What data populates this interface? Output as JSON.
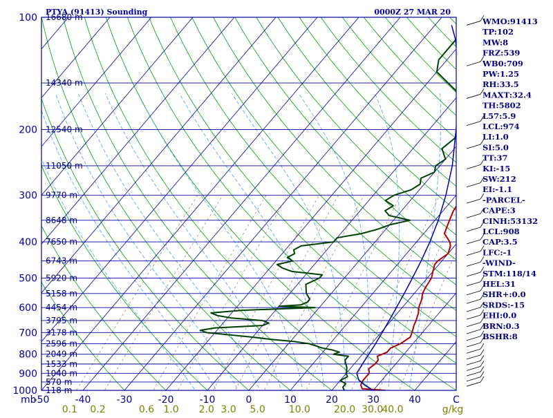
{
  "chart_data": {
    "type": "line",
    "title_left": "PTYA (91413) Sounding",
    "title_right": "0000Z 27 MAR 20",
    "x_axis": {
      "unit_label": "mb",
      "temp_ticks": [
        "-50",
        "-40",
        "-30",
        "-20",
        "-10",
        "0",
        "10",
        "20",
        "30",
        "40",
        "C"
      ],
      "mixing_ratio_ticks": [
        "0.1",
        "0.2",
        "0.6",
        "1.0",
        "2.0",
        "3.0",
        "5.0",
        "10.0",
        "20.0",
        "30.0",
        "40.0",
        "g/kg"
      ],
      "temp_range": [
        -50,
        50
      ]
    },
    "y_axis": {
      "pressure_ticks": [
        "100",
        "200",
        "300",
        "400",
        "500",
        "600",
        "700",
        "800",
        "900",
        "1000"
      ],
      "pressure_range": [
        100,
        1000
      ],
      "scale": "log"
    },
    "height_labels": [
      {
        "p": 100,
        "label": "16680 m"
      },
      {
        "p": 150,
        "label": "14340 m"
      },
      {
        "p": 200,
        "label": "12540 m"
      },
      {
        "p": 250,
        "label": "11050 m"
      },
      {
        "p": 300,
        "label": "9770 m"
      },
      {
        "p": 350,
        "label": "8648 m"
      },
      {
        "p": 400,
        "label": "7650 m"
      },
      {
        "p": 450,
        "label": "6743 m"
      },
      {
        "p": 500,
        "label": "5920 m"
      },
      {
        "p": 550,
        "label": "5158 m"
      },
      {
        "p": 600,
        "label": "4454 m"
      },
      {
        "p": 650,
        "label": "3795 m"
      },
      {
        "p": 700,
        "label": "3178 m"
      },
      {
        "p": 750,
        "label": "2596 m"
      },
      {
        "p": 800,
        "label": "2049 m"
      },
      {
        "p": 850,
        "label": "1533 m"
      },
      {
        "p": 900,
        "label": "1040 m"
      },
      {
        "p": 950,
        "label": "570 m"
      },
      {
        "p": 1000,
        "label": "118 m"
      }
    ],
    "series": [
      {
        "key": "temperature",
        "color": "#b00000",
        "points": [
          [
            1000,
            33
          ],
          [
            990,
            27
          ],
          [
            970,
            26
          ],
          [
            950,
            25.5
          ],
          [
            925,
            25.5
          ],
          [
            900,
            25.5
          ],
          [
            875,
            24.5
          ],
          [
            850,
            25
          ],
          [
            830,
            25
          ],
          [
            810,
            24
          ],
          [
            790,
            25.5
          ],
          [
            770,
            25.5
          ],
          [
            750,
            27
          ],
          [
            720,
            28
          ],
          [
            700,
            27.5
          ],
          [
            670,
            26.5
          ],
          [
            650,
            26
          ],
          [
            620,
            25
          ],
          [
            600,
            24
          ],
          [
            570,
            23
          ],
          [
            550,
            22
          ],
          [
            530,
            21.5
          ],
          [
            500,
            21
          ],
          [
            480,
            20
          ],
          [
            460,
            19
          ],
          [
            450,
            19
          ],
          [
            430,
            20
          ],
          [
            410,
            19
          ],
          [
            400,
            18
          ],
          [
            380,
            15
          ],
          [
            360,
            14
          ],
          [
            350,
            13.5
          ],
          [
            330,
            12.5
          ],
          [
            310,
            12
          ],
          [
            300,
            11
          ],
          [
            280,
            9
          ],
          [
            260,
            6
          ],
          [
            250,
            5
          ],
          [
            230,
            2
          ],
          [
            210,
            0
          ],
          [
            200,
            -1
          ],
          [
            180,
            -4
          ],
          [
            160,
            -7
          ],
          [
            150,
            -8
          ],
          [
            130,
            -9
          ],
          [
            115,
            -10
          ],
          [
            105,
            -10
          ],
          [
            100,
            -11
          ]
        ]
      },
      {
        "key": "dewpoint",
        "color": "#004000",
        "points": [
          [
            1000,
            23
          ],
          [
            980,
            22
          ],
          [
            960,
            22
          ],
          [
            940,
            20
          ],
          [
            920,
            21
          ],
          [
            900,
            20
          ],
          [
            870,
            19
          ],
          [
            850,
            18
          ],
          [
            830,
            17
          ],
          [
            810,
            17
          ],
          [
            800,
            13
          ],
          [
            790,
            14
          ],
          [
            780,
            12
          ],
          [
            770,
            9
          ],
          [
            760,
            7
          ],
          [
            750,
            5
          ],
          [
            740,
            1
          ],
          [
            730,
            -5
          ],
          [
            720,
            -10
          ],
          [
            700,
            -22
          ],
          [
            690,
            -24
          ],
          [
            680,
            -21
          ],
          [
            670,
            -10
          ],
          [
            660,
            -9
          ],
          [
            650,
            -11
          ],
          [
            640,
            -19
          ],
          [
            630,
            -23
          ],
          [
            620,
            -25
          ],
          [
            610,
            -18
          ],
          [
            600,
            -1
          ],
          [
            595,
            -10
          ],
          [
            590,
            -5
          ],
          [
            580,
            -4
          ],
          [
            570,
            -4
          ],
          [
            550,
            -6
          ],
          [
            520,
            -8
          ],
          [
            500,
            -6
          ],
          [
            490,
            -6
          ],
          [
            480,
            -14
          ],
          [
            470,
            -17
          ],
          [
            460,
            -19
          ],
          [
            450,
            -16
          ],
          [
            440,
            -18
          ],
          [
            430,
            -17
          ],
          [
            420,
            -18
          ],
          [
            410,
            -17
          ],
          [
            400,
            -10
          ],
          [
            390,
            -10
          ],
          [
            380,
            -5
          ],
          [
            370,
            -2
          ],
          [
            360,
            0
          ],
          [
            350,
            4
          ],
          [
            345,
            1
          ],
          [
            340,
            -2
          ],
          [
            330,
            -4
          ],
          [
            320,
            -3
          ],
          [
            310,
            -6
          ],
          [
            300,
            -5
          ],
          [
            290,
            -2
          ],
          [
            280,
            -1
          ],
          [
            270,
            -2
          ],
          [
            260,
            0
          ],
          [
            250,
            -1
          ],
          [
            240,
            0
          ],
          [
            225,
            -3
          ],
          [
            210,
            -2
          ],
          [
            200,
            -3
          ],
          [
            180,
            -4
          ],
          [
            165,
            -8
          ],
          [
            150,
            -15
          ],
          [
            140,
            -20
          ],
          [
            130,
            -22
          ],
          [
            110,
            -22
          ],
          [
            100,
            -26
          ]
        ]
      },
      {
        "key": "parcel",
        "color": "#0000a0",
        "points": [
          [
            1000,
            30
          ],
          [
            970,
            27
          ],
          [
            940,
            24.5
          ],
          [
            900,
            22.5
          ],
          [
            850,
            22
          ],
          [
            800,
            21.5
          ],
          [
            750,
            21
          ],
          [
            700,
            20.3
          ],
          [
            650,
            19.5
          ],
          [
            600,
            18.6
          ],
          [
            550,
            17.6
          ],
          [
            500,
            16.4
          ],
          [
            450,
            15
          ],
          [
            400,
            13.2
          ],
          [
            350,
            10.8
          ],
          [
            300,
            7.5
          ],
          [
            250,
            3
          ],
          [
            200,
            -3.5
          ],
          [
            170,
            -8.5
          ],
          [
            150,
            -12.5
          ],
          [
            130,
            -17.5
          ],
          [
            115,
            -22
          ],
          [
            105,
            -26
          ]
        ]
      }
    ]
  },
  "indices": [
    "WMO:91413",
    "TP:102",
    "MW:8",
    "FRZ:539",
    "WB0:709",
    "PW:1.25",
    "RH:33.5",
    "MAXT:32.4",
    "TH:5802",
    "L57:5.9",
    "LCL:974",
    "LI:1.0",
    "SI:5.0",
    "TT:37",
    "KI:-15",
    "SW:212",
    "EI:-1.1",
    "-PARCEL-",
    "CAPE:3",
    "CINH:53132",
    "LCL:908",
    "CAP:3.5",
    "LFC:-1",
    "-WIND-",
    "STM:118/14",
    "HEL:31",
    "SHR+:0.0",
    "SRDS:-15",
    "EHI:0.0",
    "BRN:0.3",
    "BSHR:8"
  ],
  "colors": {
    "axis": "#0000a0",
    "isobar": "#0000a0",
    "isotherm": "#0000a0",
    "dry_adiabat": "#00a000",
    "moist_adiabat": "#40a0ff",
    "mixing_ratio": "#808060",
    "mixing_ratio_label": "#808000"
  }
}
